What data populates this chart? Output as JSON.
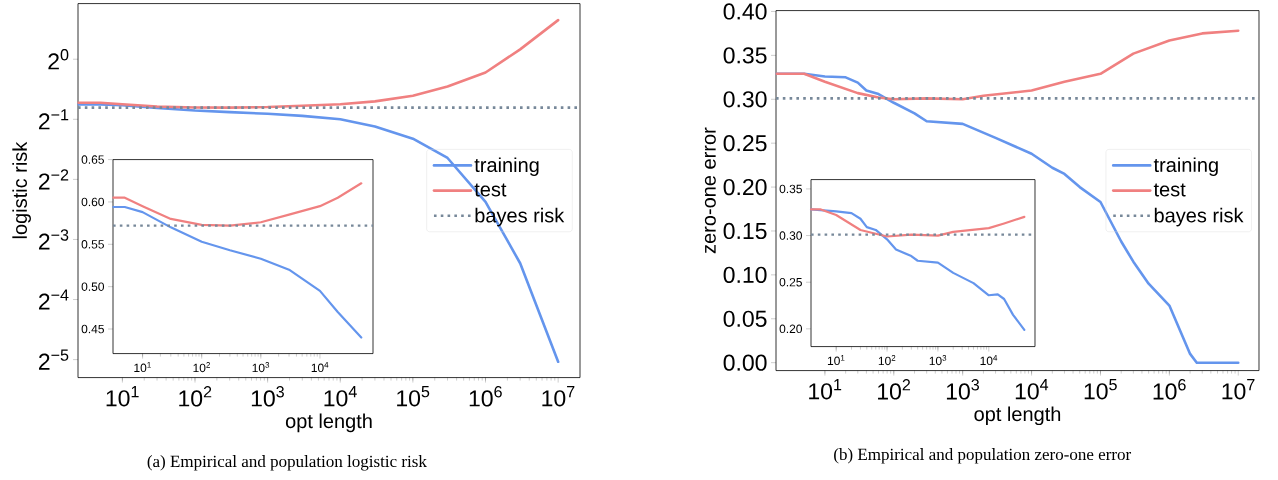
{
  "chart_data": [
    {
      "type": "line",
      "xlabel": "opt length",
      "ylabel": "logistic risk",
      "log": "xy",
      "legend": "right",
      "xlim": [
        2.45,
        20000000
      ],
      "ylim": [
        0.0254,
        1.9
      ],
      "xticks": [
        {
          "value": 10,
          "label": "10$^{1}$"
        },
        {
          "value": 100,
          "label": "10$^{2}$"
        },
        {
          "value": 1000,
          "label": "10$^{3}$"
        },
        {
          "value": 10000,
          "label": "10$^{4}$"
        },
        {
          "value": 100000,
          "label": "10$^{5}$"
        },
        {
          "value": 1000000,
          "label": "10$^{6}$"
        },
        {
          "value": 10000000,
          "label": "10$^{7}$"
        }
      ],
      "yticks": [
        {
          "value": 0.03125,
          "label": "2$^{−5}$"
        },
        {
          "value": 0.0625,
          "label": "2$^{−4}$"
        },
        {
          "value": 0.125,
          "label": "2$^{−3}$"
        },
        {
          "value": 0.25,
          "label": "2$^{−2}$"
        },
        {
          "value": 0.5,
          "label": "2$^{−1}$"
        },
        {
          "value": 1,
          "label": "2$^{0}$"
        }
      ],
      "series": [
        {
          "name": "training",
          "color": "#6495ed",
          "x": [
            2.5,
            5,
            10,
            30,
            100,
            300,
            1000,
            3000,
            10000,
            30000,
            100000,
            300000,
            1000000,
            3000000,
            10000000
          ],
          "values": [
            0.594,
            0.594,
            0.588,
            0.57,
            0.553,
            0.543,
            0.533,
            0.52,
            0.5,
            0.46,
            0.4,
            0.32,
            0.193,
            0.095,
            0.0305
          ]
        },
        {
          "name": "test",
          "color": "#f08080",
          "x": [
            2.5,
            5,
            10,
            30,
            100,
            300,
            1000,
            3000,
            10000,
            30000,
            100000,
            300000,
            1000000,
            3000000,
            10000000
          ],
          "values": [
            0.605,
            0.605,
            0.595,
            0.58,
            0.573,
            0.572,
            0.576,
            0.585,
            0.595,
            0.615,
            0.656,
            0.73,
            0.858,
            1.12,
            1.57
          ]
        }
      ],
      "ref_lines": [
        {
          "axis": "y",
          "value": 0.572,
          "label": "bayes risk",
          "color": "#778899",
          "line_style": "dotted"
        }
      ],
      "annotations": [
        "(a) Empirical and population logistic risk"
      ]
    },
    {
      "type": "line",
      "log": "x",
      "xlim": [
        3.16,
        79000
      ],
      "ylim": [
        0.421,
        0.65
      ],
      "xticks": [
        {
          "value": 10,
          "label": "10$^{1}$"
        },
        {
          "value": 100,
          "label": "10$^{2}$"
        },
        {
          "value": 1000,
          "label": "10$^{3}$"
        },
        {
          "value": 10000,
          "label": "10$^{4}$"
        }
      ],
      "yticks": [
        {
          "value": 0.45,
          "label": "0.45"
        },
        {
          "value": 0.5,
          "label": "0.50"
        },
        {
          "value": 0.55,
          "label": "0.55"
        },
        {
          "value": 0.6,
          "label": "0.60"
        },
        {
          "value": 0.65,
          "label": "0.65"
        }
      ],
      "series": [
        {
          "color": "#6495ed",
          "x": [
            3.2,
            5,
            10,
            30,
            100,
            300,
            1000,
            3000,
            10000,
            20000,
            50000
          ],
          "values": [
            0.594,
            0.594,
            0.588,
            0.57,
            0.553,
            0.543,
            0.533,
            0.52,
            0.495,
            0.47,
            0.44
          ]
        },
        {
          "color": "#f08080",
          "x": [
            3.2,
            5,
            10,
            30,
            100,
            300,
            1000,
            3000,
            10000,
            20000,
            50000
          ],
          "values": [
            0.605,
            0.605,
            0.595,
            0.58,
            0.573,
            0.572,
            0.576,
            0.585,
            0.595,
            0.605,
            0.622
          ]
        }
      ],
      "ref_lines": [
        {
          "axis": "y",
          "value": 0.572,
          "color": "#778899",
          "line_style": "dotted"
        }
      ]
    },
    {
      "type": "line",
      "xlabel": "opt length",
      "ylabel": "zero-one error",
      "log": "x",
      "legend": "right",
      "xlim": [
        1.95,
        20000000
      ],
      "ylim": [
        -0.009,
        0.401
      ],
      "xticks": [
        {
          "value": 10,
          "label": "10$^{1}$"
        },
        {
          "value": 100,
          "label": "10$^{2}$"
        },
        {
          "value": 1000,
          "label": "10$^{3}$"
        },
        {
          "value": 10000,
          "label": "10$^{4}$"
        },
        {
          "value": 100000,
          "label": "10$^{5}$"
        },
        {
          "value": 1000000,
          "label": "10$^{6}$"
        },
        {
          "value": 10000000,
          "label": "10$^{7}$"
        }
      ],
      "yticks": [
        {
          "value": 0,
          "label": "0.00"
        },
        {
          "value": 0.05,
          "label": "0.05"
        },
        {
          "value": 0.1,
          "label": "0.10"
        },
        {
          "value": 0.15,
          "label": "0.15"
        },
        {
          "value": 0.2,
          "label": "0.20"
        },
        {
          "value": 0.25,
          "label": "0.25"
        },
        {
          "value": 0.3,
          "label": "0.30"
        },
        {
          "value": 0.35,
          "label": "0.35"
        },
        {
          "value": 0.4,
          "label": "0.40"
        }
      ],
      "series": [
        {
          "name": "training",
          "color": "#6495ed",
          "x": [
            2,
            5,
            10,
            20,
            30,
            40,
            60,
            100,
            200,
            300,
            1000,
            3000,
            10000,
            20000,
            30000,
            50000,
            100000,
            200000,
            300000,
            500000,
            1000000,
            2000000,
            2500000,
            10000000
          ],
          "values": [
            0.329,
            0.329,
            0.326,
            0.325,
            0.319,
            0.31,
            0.306,
            0.296,
            0.284,
            0.275,
            0.272,
            0.256,
            0.238,
            0.222,
            0.215,
            0.2,
            0.183,
            0.138,
            0.115,
            0.09,
            0.065,
            0.01,
            0.0,
            0.0
          ]
        },
        {
          "name": "test",
          "color": "#f08080",
          "x": [
            2,
            5,
            10,
            30,
            60,
            100,
            300,
            1000,
            2000,
            10000,
            30000,
            100000,
            300000,
            1000000,
            3000000,
            10000000
          ],
          "values": [
            0.329,
            0.329,
            0.32,
            0.307,
            0.302,
            0.3,
            0.301,
            0.3,
            0.304,
            0.31,
            0.32,
            0.329,
            0.352,
            0.367,
            0.375,
            0.378
          ]
        }
      ],
      "ref_lines": [
        {
          "axis": "y",
          "value": 0.301,
          "label": "bayes risk",
          "color": "#778899",
          "line_style": "dotted"
        }
      ],
      "annotations": [
        "(b) Empirical and population zero-one error"
      ]
    },
    {
      "type": "line",
      "log": "x",
      "xlim": [
        3.2,
        81000
      ],
      "ylim": [
        0.181,
        0.36
      ],
      "xticks": [
        {
          "value": 10,
          "label": "10$^{1}$"
        },
        {
          "value": 100,
          "label": "10$^{2}$"
        },
        {
          "value": 1000,
          "label": "10$^{3}$"
        },
        {
          "value": 10000,
          "label": "10$^{4}$"
        }
      ],
      "yticks": [
        {
          "value": 0.2,
          "label": "0.20"
        },
        {
          "value": 0.25,
          "label": "0.25"
        },
        {
          "value": 0.3,
          "label": "0.30"
        },
        {
          "value": 0.35,
          "label": "0.35"
        }
      ],
      "series": [
        {
          "color": "#6495ed",
          "x": [
            3.2,
            10,
            20,
            30,
            40,
            60,
            100,
            150,
            300,
            400,
            1000,
            2000,
            5000,
            10000,
            15000,
            20000,
            30000,
            50000
          ],
          "values": [
            0.328,
            0.326,
            0.324,
            0.318,
            0.309,
            0.306,
            0.296,
            0.285,
            0.278,
            0.273,
            0.271,
            0.26,
            0.249,
            0.236,
            0.237,
            0.232,
            0.215,
            0.199
          ]
        },
        {
          "color": "#f08080",
          "x": [
            3.2,
            5,
            10,
            30,
            60,
            100,
            300,
            1000,
            2000,
            10000,
            20000,
            50000
          ],
          "values": [
            0.328,
            0.328,
            0.322,
            0.306,
            0.302,
            0.299,
            0.301,
            0.3,
            0.304,
            0.308,
            0.313,
            0.32
          ]
        }
      ],
      "ref_lines": [
        {
          "axis": "y",
          "value": 0.301,
          "color": "#778899",
          "line_style": "dotted"
        }
      ]
    }
  ]
}
